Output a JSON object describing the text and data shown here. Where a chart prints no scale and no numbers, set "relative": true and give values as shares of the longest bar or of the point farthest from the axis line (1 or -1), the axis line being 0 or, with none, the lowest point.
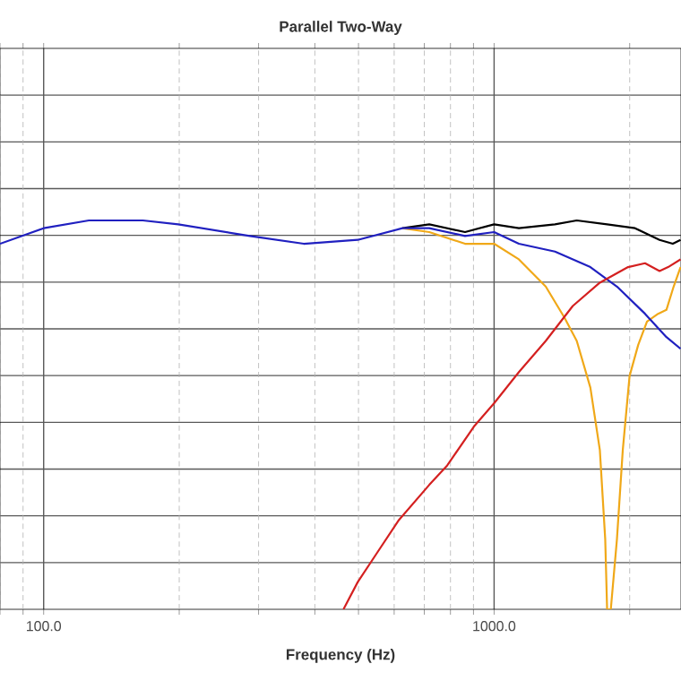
{
  "chart_data": {
    "type": "line",
    "title": "Parallel Two-Way",
    "xlabel": "Frequency (Hz)",
    "relative": true,
    "log": "x",
    "grid": true,
    "marker": "none",
    "line_style": "solid",
    "tick_labels": "x",
    "xlim": [
      80,
      2600
    ],
    "xticks": [
      {
        "value": 80,
        "label": null
      },
      {
        "value": 90,
        "label": null
      },
      {
        "value": 100,
        "label": "100.0"
      },
      {
        "value": 200,
        "label": null
      },
      {
        "value": 300,
        "label": null
      },
      {
        "value": 400,
        "label": null
      },
      {
        "value": 500,
        "label": null
      },
      {
        "value": 600,
        "label": null
      },
      {
        "value": 700,
        "label": null
      },
      {
        "value": 800,
        "label": null
      },
      {
        "value": 900,
        "label": null
      },
      {
        "value": 1000,
        "label": "1000.0"
      },
      {
        "value": 2000,
        "label": null
      }
    ],
    "series": [
      {
        "color": "#000000",
        "x": [
          626,
          718,
          862,
          1000,
          1135,
          1365,
          1526,
          1782,
          2056,
          2330,
          2493,
          2594
        ],
        "values": [
          0.98,
          0.99,
          0.97,
          0.99,
          0.98,
          0.99,
          1.0,
          0.99,
          0.98,
          0.95,
          0.94,
          0.95
        ]
      },
      {
        "color": "#f0a818",
        "x": [
          626,
          718,
          862,
          1000,
          1135,
          1302,
          1433,
          1526,
          1636,
          1717,
          1765,
          1782,
          1816,
          1874,
          1931,
          1999,
          2089,
          2185,
          2313,
          2413,
          2504,
          2594
        ],
        "values": [
          0.98,
          0.97,
          0.94,
          0.94,
          0.9,
          0.83,
          0.75,
          0.69,
          0.57,
          0.41,
          0.18,
          0,
          0,
          0.18,
          0.41,
          0.6,
          0.68,
          0.74,
          0.76,
          0.77,
          0.83,
          0.88
        ]
      },
      {
        "color": "#2020c0",
        "x": [
          80,
          100,
          126,
          166,
          199,
          287,
          378,
          498,
          626,
          718,
          862,
          1000,
          1135,
          1365,
          1636,
          1874,
          2163,
          2413,
          2594
        ],
        "values": [
          0.94,
          0.98,
          1.0,
          1.0,
          0.99,
          0.96,
          0.94,
          0.95,
          0.98,
          0.98,
          0.96,
          0.97,
          0.94,
          0.92,
          0.88,
          0.83,
          0.76,
          0.7,
          0.67
        ]
      },
      {
        "color": "#d42020",
        "x": [
          463,
          498,
          546,
          615,
          718,
          787,
          902,
          1000,
          1135,
          1302,
          1495,
          1717,
          1984,
          2163,
          2330,
          2434,
          2594
        ],
        "values": [
          0,
          0.07,
          0.14,
          0.23,
          0.32,
          0.37,
          0.47,
          0.53,
          0.61,
          0.69,
          0.78,
          0.84,
          0.88,
          0.89,
          0.87,
          0.88,
          0.9
        ]
      }
    ]
  }
}
